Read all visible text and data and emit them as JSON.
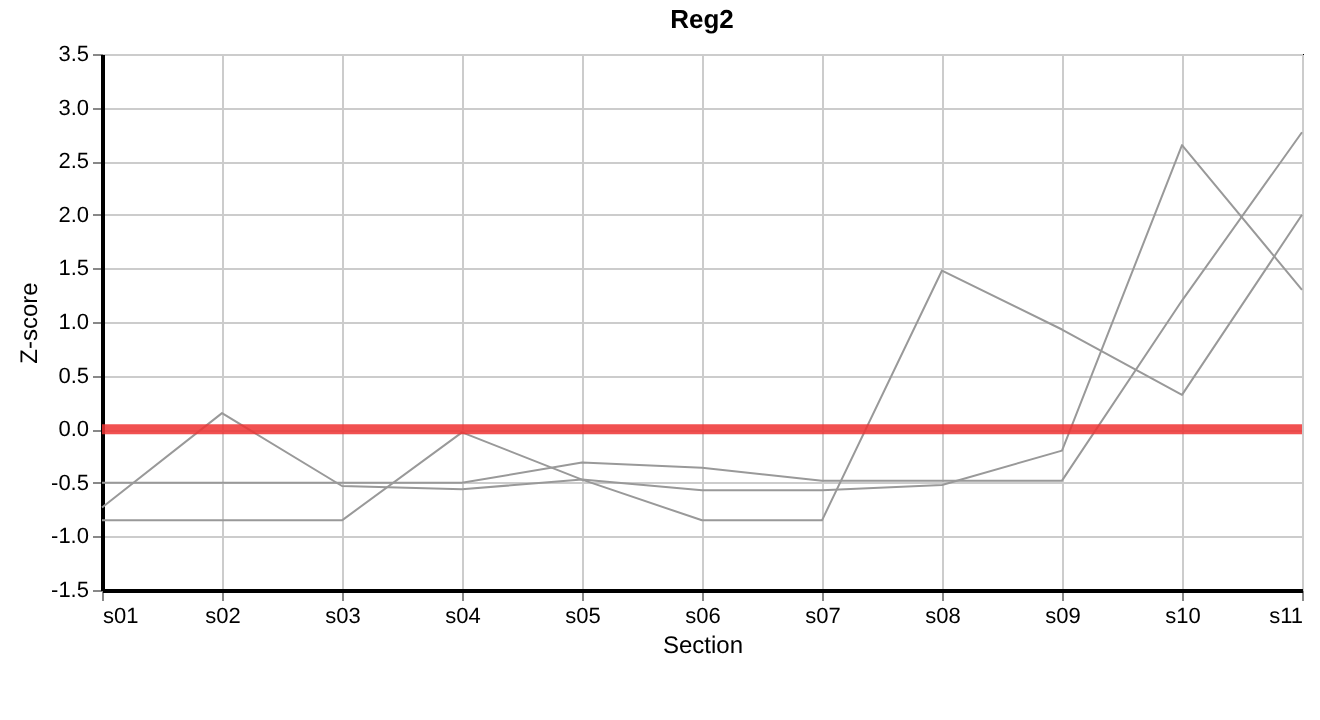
{
  "chart_data": {
    "type": "line",
    "title": "Reg2",
    "xlabel": "Section",
    "ylabel": "Z-score",
    "categories": [
      "s01",
      "s02",
      "s03",
      "s04",
      "s05",
      "s06",
      "s07",
      "s08",
      "s09",
      "s10",
      "s11"
    ],
    "series": [
      {
        "color": "#999999",
        "values": [
          -0.73,
          0.15,
          -0.53,
          -0.56,
          -0.47,
          -0.57,
          -0.57,
          -0.52,
          -0.2,
          2.65,
          1.3
        ]
      },
      {
        "color": "#999999",
        "values": [
          -0.85,
          -0.85,
          -0.85,
          -0.03,
          -0.47,
          -0.85,
          -0.85,
          1.48,
          0.93,
          0.32,
          2.0
        ]
      },
      {
        "color": "#999999",
        "values": [
          -0.5,
          -0.5,
          -0.5,
          -0.5,
          -0.31,
          -0.36,
          -0.48,
          -0.48,
          -0.48,
          1.2,
          2.77
        ]
      }
    ],
    "ylim": [
      -1.5,
      3.5
    ],
    "yticks": [
      {
        "value": -1.5,
        "label": "-1.5"
      },
      {
        "value": -1,
        "label": "-1.0"
      },
      {
        "value": -0.5,
        "label": "-0.5"
      },
      {
        "value": 0,
        "label": "0.0"
      },
      {
        "value": 0.5,
        "label": "0.5"
      },
      {
        "value": 1,
        "label": "1.0"
      },
      {
        "value": 1.5,
        "label": "1.5"
      },
      {
        "value": 2,
        "label": "2.0"
      },
      {
        "value": 2.5,
        "label": "2.5"
      },
      {
        "value": 3,
        "label": "3.0"
      },
      {
        "value": 3.5,
        "label": "3.5"
      }
    ],
    "grid": true,
    "legend": false,
    "ref_lines": [
      {
        "axis": "y",
        "value": 0,
        "color": "#ee3333"
      }
    ]
  }
}
